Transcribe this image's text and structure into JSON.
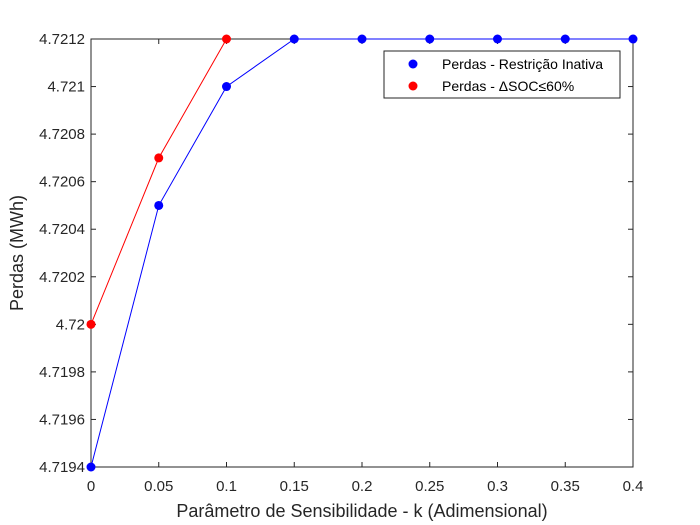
{
  "chart_data": {
    "type": "line",
    "xlabel": "Parâmetro de Sensibilidade - k (Adimensional)",
    "ylabel": "Perdas (MWh)",
    "xlim": [
      0,
      0.4
    ],
    "ylim": [
      4.7194,
      4.7212
    ],
    "x_ticks": [
      "0",
      "0.05",
      "0.1",
      "0.15",
      "0.2",
      "0.25",
      "0.3",
      "0.35",
      "0.4"
    ],
    "x_tick_values": [
      0,
      0.05,
      0.1,
      0.15,
      0.2,
      0.25,
      0.3,
      0.35,
      0.4
    ],
    "y_ticks": [
      "4.7194",
      "4.7196",
      "4.7198",
      "4.72",
      "4.7202",
      "4.7204",
      "4.7206",
      "4.7208",
      "4.721",
      "4.7212"
    ],
    "y_tick_values": [
      4.7194,
      4.7196,
      4.7198,
      4.72,
      4.7202,
      4.7204,
      4.7206,
      4.7208,
      4.721,
      4.7212
    ],
    "grid": false,
    "legend_position": "top-right",
    "series": [
      {
        "name": "Perdas - Restrição Inativa",
        "color": "#0000ff",
        "x": [
          0,
          0.05,
          0.1,
          0.15,
          0.2,
          0.25,
          0.3,
          0.35,
          0.4
        ],
        "y": [
          4.7194,
          4.7205,
          4.721,
          4.7212,
          4.7212,
          4.7212,
          4.7212,
          4.7212,
          4.7212
        ]
      },
      {
        "name": "Perdas - ΔSOC≤60%",
        "color": "#ff0000",
        "x": [
          0,
          0.05,
          0.1
        ],
        "y": [
          4.72,
          4.7207,
          4.7212
        ]
      }
    ]
  }
}
